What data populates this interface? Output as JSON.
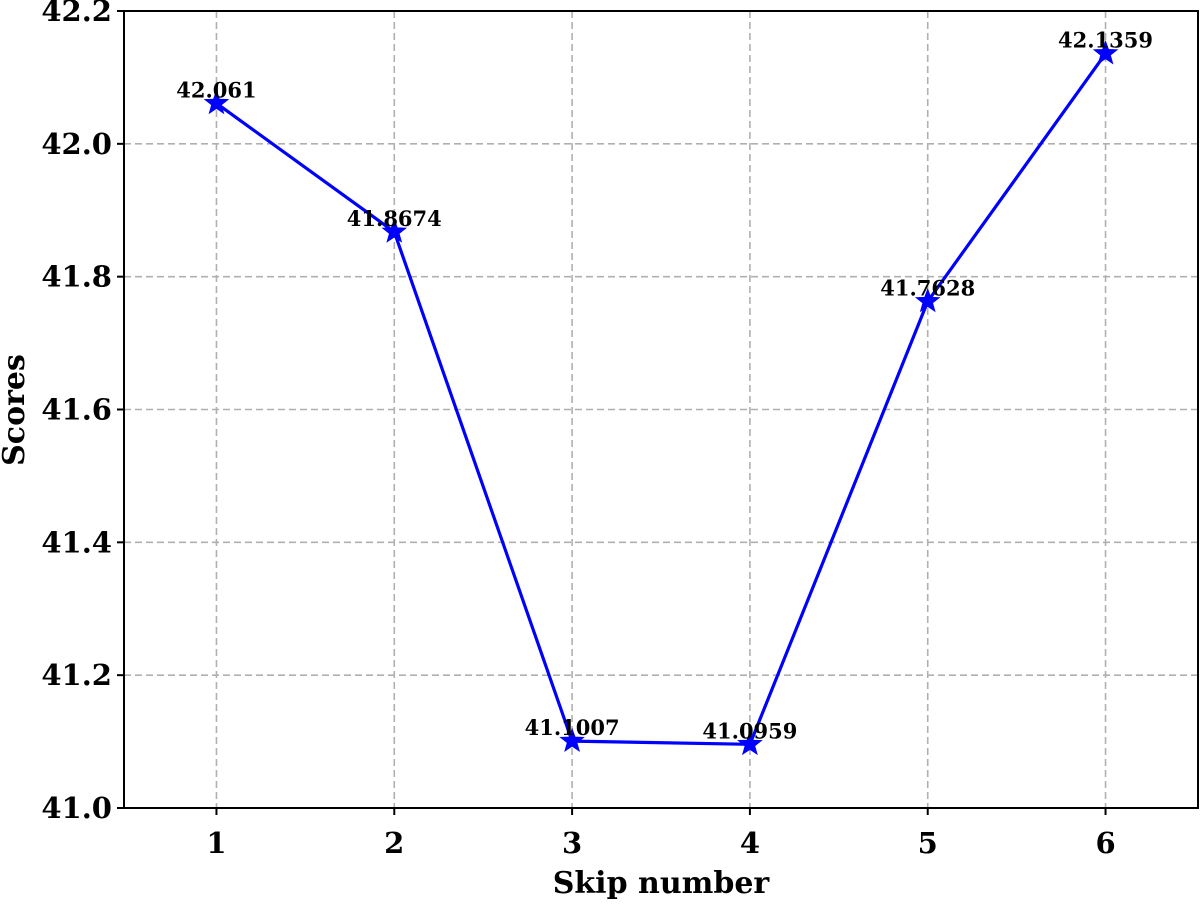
{
  "chart_data": {
    "type": "line",
    "title": "",
    "xlabel": "Skip number",
    "ylabel": "Scores",
    "x": [
      1,
      2,
      3,
      4,
      5,
      6
    ],
    "xticks": [
      "1",
      "2",
      "3",
      "4",
      "5",
      "6"
    ],
    "yticks": [
      "41.0",
      "41.2",
      "41.4",
      "41.6",
      "41.8",
      "42.0",
      "42.2"
    ],
    "ylim": [
      41.0,
      42.2
    ],
    "xlim": [
      0.48,
      6.52
    ],
    "grid": true,
    "series": [
      {
        "values": [
          42.061,
          41.8674,
          41.1007,
          41.0959,
          41.7628,
          42.1359
        ],
        "labels": [
          "42.061",
          "41.8674",
          "41.1007",
          "41.0959",
          "41.7628",
          "42.1359"
        ],
        "color": "#0000ff",
        "marker": "star"
      }
    ]
  }
}
